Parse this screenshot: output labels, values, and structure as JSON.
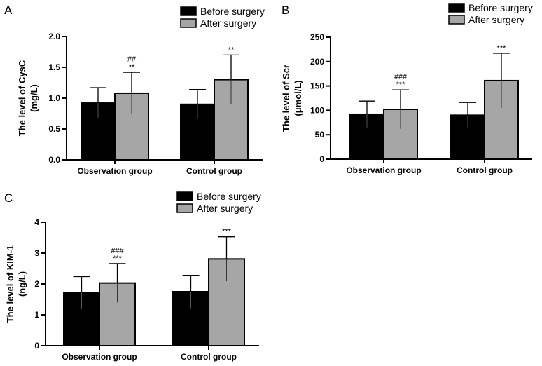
{
  "legend": {
    "before_label": "Before surgery",
    "after_label": "After surgery"
  },
  "colors": {
    "before": "#000000",
    "after": "#a6a6a6",
    "axis": "#000000"
  },
  "chart_data": [
    {
      "panel": "A",
      "type": "bar",
      "title": "",
      "categories": [
        "Observation group",
        "Control group"
      ],
      "ylabel": [
        "The level of CysC",
        "(mg/L)"
      ],
      "ylim": [
        0,
        2.0
      ],
      "yticks": [
        "0.0",
        "0.5",
        "1.0",
        "1.5",
        "2.0"
      ],
      "series": [
        {
          "name": "Before surgery",
          "values": [
            0.92,
            0.9
          ],
          "errors": [
            0.25,
            0.24
          ]
        },
        {
          "name": "After surgery",
          "values": [
            1.08,
            1.3
          ],
          "errors": [
            0.34,
            0.4
          ]
        }
      ],
      "annotations": [
        {
          "series": 1,
          "category": 0,
          "lines": [
            "##",
            "**"
          ]
        },
        {
          "series": 1,
          "category": 1,
          "lines": [
            "**"
          ]
        }
      ],
      "legend_position": "top"
    },
    {
      "panel": "B",
      "type": "bar",
      "title": "",
      "categories": [
        "Observation group",
        "Control group"
      ],
      "ylabel": [
        "The level of Scr",
        "(μmol/L)"
      ],
      "ylim": [
        0,
        250
      ],
      "yticks": [
        "0",
        "50",
        "100",
        "150",
        "200",
        "250"
      ],
      "series": [
        {
          "name": "Before surgery",
          "values": [
            92,
            90
          ],
          "errors": [
            27,
            26
          ]
        },
        {
          "name": "After surgery",
          "values": [
            102,
            161
          ],
          "errors": [
            40,
            56
          ]
        }
      ],
      "annotations": [
        {
          "series": 1,
          "category": 0,
          "lines": [
            "###",
            "***"
          ]
        },
        {
          "series": 1,
          "category": 1,
          "lines": [
            "***"
          ]
        }
      ],
      "legend_position": "top"
    },
    {
      "panel": "C",
      "type": "bar",
      "title": "",
      "categories": [
        "Observation group",
        "Control group"
      ],
      "ylabel": [
        "The level of KIM-1",
        "(ng/L)"
      ],
      "ylim": [
        0,
        4
      ],
      "yticks": [
        "0",
        "1",
        "2",
        "3",
        "4"
      ],
      "series": [
        {
          "name": "Before surgery",
          "values": [
            1.72,
            1.75
          ],
          "errors": [
            0.52,
            0.53
          ]
        },
        {
          "name": "After surgery",
          "values": [
            2.03,
            2.81
          ],
          "errors": [
            0.63,
            0.72
          ]
        }
      ],
      "annotations": [
        {
          "series": 1,
          "category": 0,
          "lines": [
            "###",
            "***"
          ]
        },
        {
          "series": 1,
          "category": 1,
          "lines": [
            "***"
          ]
        }
      ],
      "legend_position": "top"
    }
  ]
}
